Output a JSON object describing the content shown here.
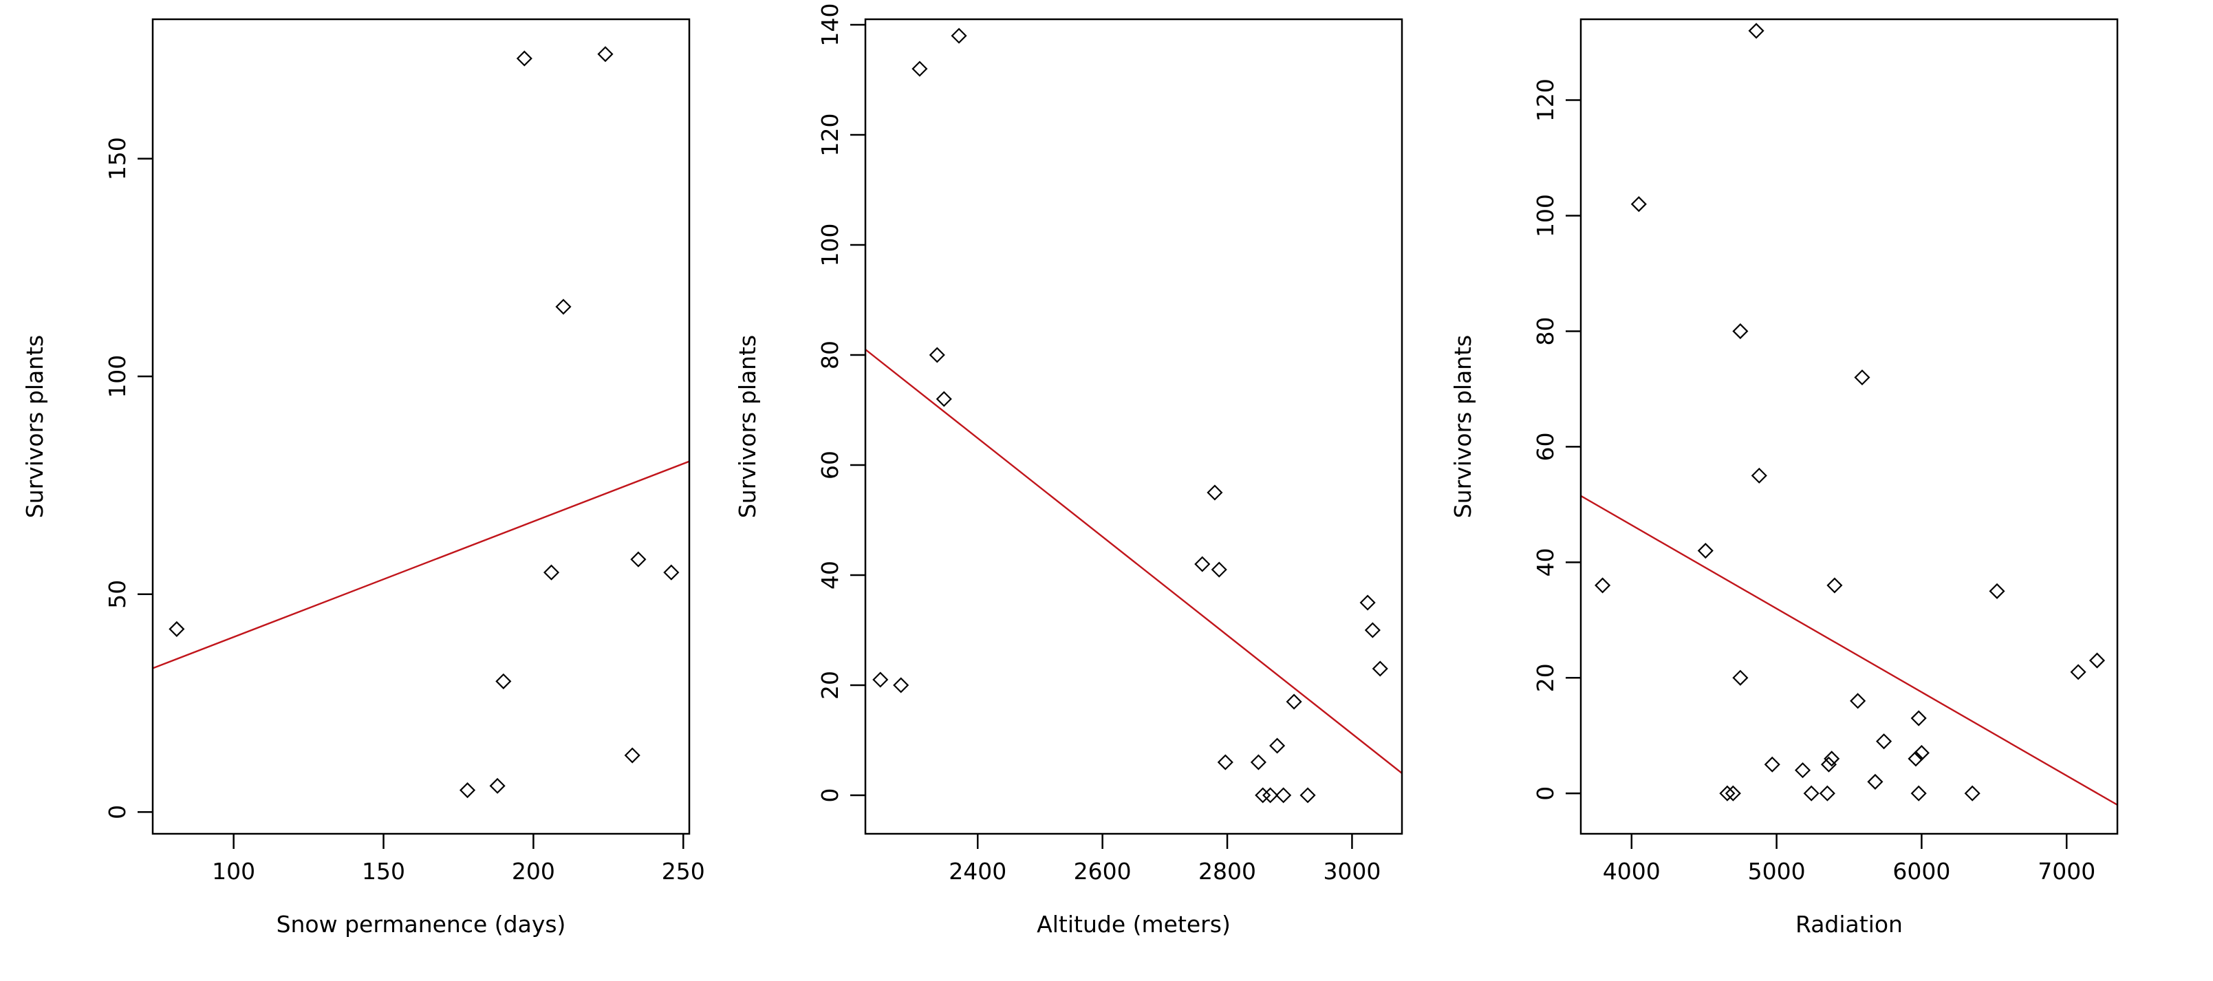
{
  "chart_data": [
    {
      "type": "scatter",
      "xlabel": "Snow permanence (days)",
      "ylabel": "Survivors plants",
      "xlim": [
        73,
        252
      ],
      "ylim": [
        -5,
        182
      ],
      "xticks": [
        100,
        150,
        200,
        250
      ],
      "yticks": [
        0,
        50,
        100,
        150
      ],
      "grid": false,
      "points": [
        {
          "x": 81,
          "y": 42
        },
        {
          "x": 178,
          "y": 5
        },
        {
          "x": 188,
          "y": 6
        },
        {
          "x": 190,
          "y": 30
        },
        {
          "x": 197,
          "y": 173
        },
        {
          "x": 206,
          "y": 55
        },
        {
          "x": 210,
          "y": 116
        },
        {
          "x": 224,
          "y": 174
        },
        {
          "x": 233,
          "y": 13
        },
        {
          "x": 235,
          "y": 58
        },
        {
          "x": 246,
          "y": 55
        }
      ],
      "fit_line": {
        "x": [
          73,
          252
        ],
        "y": [
          33,
          80.5
        ],
        "color": "#c1151b"
      }
    },
    {
      "type": "scatter",
      "xlabel": "Altitude (meters)",
      "ylabel": "Survivors plants",
      "xlim": [
        2220,
        3080
      ],
      "ylim": [
        -7,
        141
      ],
      "xticks": [
        2400,
        2600,
        2800,
        3000
      ],
      "yticks": [
        0,
        20,
        40,
        60,
        80,
        100,
        120,
        140
      ],
      "grid": false,
      "points": [
        {
          "x": 2244,
          "y": 21
        },
        {
          "x": 2277,
          "y": 20
        },
        {
          "x": 2307,
          "y": 132
        },
        {
          "x": 2335,
          "y": 80
        },
        {
          "x": 2346,
          "y": 72
        },
        {
          "x": 2370,
          "y": 138
        },
        {
          "x": 2760,
          "y": 42
        },
        {
          "x": 2780,
          "y": 55
        },
        {
          "x": 2787,
          "y": 41
        },
        {
          "x": 2797,
          "y": 6
        },
        {
          "x": 2850,
          "y": 6
        },
        {
          "x": 2857,
          "y": 0
        },
        {
          "x": 2869,
          "y": 0
        },
        {
          "x": 2880,
          "y": 9
        },
        {
          "x": 2890,
          "y": 0
        },
        {
          "x": 2907,
          "y": 17
        },
        {
          "x": 2929,
          "y": 0
        },
        {
          "x": 3025,
          "y": 35
        },
        {
          "x": 3033,
          "y": 30
        },
        {
          "x": 3045,
          "y": 23
        }
      ],
      "fit_line": {
        "x": [
          2220,
          3080
        ],
        "y": [
          81,
          4
        ],
        "color": "#c1151b"
      }
    },
    {
      "type": "scatter",
      "xlabel": "Radiation",
      "ylabel": "Survivors plants",
      "xlim": [
        3650,
        7350
      ],
      "ylim": [
        -7,
        134
      ],
      "xticks": [
        4000,
        5000,
        6000,
        7000
      ],
      "yticks": [
        0,
        20,
        40,
        60,
        80,
        100,
        120
      ],
      "grid": false,
      "points": [
        {
          "x": 3800,
          "y": 36
        },
        {
          "x": 4050,
          "y": 102
        },
        {
          "x": 4510,
          "y": 42
        },
        {
          "x": 4660,
          "y": 0
        },
        {
          "x": 4700,
          "y": 0
        },
        {
          "x": 4750,
          "y": 80
        },
        {
          "x": 4750,
          "y": 20
        },
        {
          "x": 4860,
          "y": 132
        },
        {
          "x": 4880,
          "y": 55
        },
        {
          "x": 4970,
          "y": 5
        },
        {
          "x": 5180,
          "y": 4
        },
        {
          "x": 5240,
          "y": 0
        },
        {
          "x": 5350,
          "y": 0
        },
        {
          "x": 5360,
          "y": 5
        },
        {
          "x": 5380,
          "y": 6
        },
        {
          "x": 5400,
          "y": 36
        },
        {
          "x": 5560,
          "y": 16
        },
        {
          "x": 5590,
          "y": 72
        },
        {
          "x": 5680,
          "y": 2
        },
        {
          "x": 5740,
          "y": 9
        },
        {
          "x": 5960,
          "y": 6
        },
        {
          "x": 5980,
          "y": 0
        },
        {
          "x": 5980,
          "y": 13
        },
        {
          "x": 6000,
          "y": 7
        },
        {
          "x": 6350,
          "y": 0
        },
        {
          "x": 6520,
          "y": 35
        },
        {
          "x": 7080,
          "y": 21
        },
        {
          "x": 7210,
          "y": 23
        }
      ],
      "fit_line": {
        "x": [
          3650,
          7350
        ],
        "y": [
          51.5,
          -2
        ],
        "color": "#c1151b"
      }
    }
  ]
}
